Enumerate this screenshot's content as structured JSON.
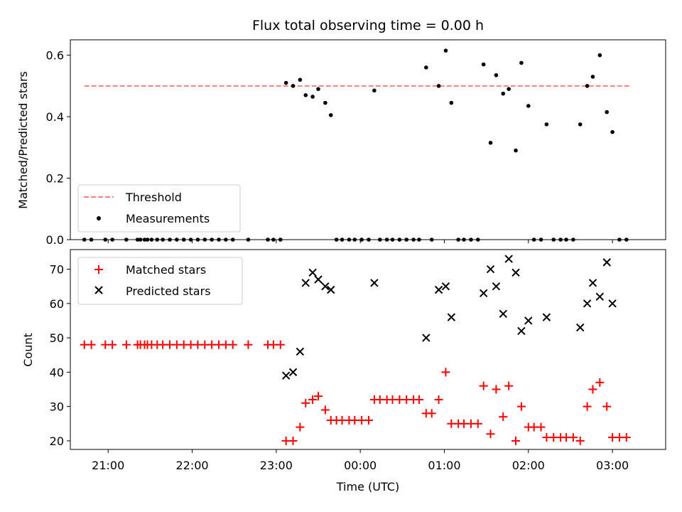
{
  "chart_data": [
    {
      "type": "scatter",
      "title": "Flux total observing time = 0.00 h",
      "xlabel": "",
      "ylabel": "Matched/Predicted stars",
      "xlim": [
        "20:33",
        "03:38"
      ],
      "ylim": [
        0,
        0.65
      ],
      "yticks": [
        0.0,
        0.2,
        0.4,
        0.6
      ],
      "ytick_labels": [
        "0.0",
        "0.2",
        "0.4",
        "0.6"
      ],
      "xticks": [
        "21:00",
        "22:00",
        "23:00",
        "00:00",
        "01:00",
        "02:00",
        "03:00"
      ],
      "grid": false,
      "legend_position": "lower-left",
      "threshold": {
        "name": "Threshold",
        "y": 0.5,
        "x_start": "20:43",
        "x_end": "03:12",
        "color": "#ff7f7f",
        "style": "dashed"
      },
      "series": [
        {
          "name": "Measurements",
          "marker": "dot",
          "color": "#000000",
          "points": [
            [
              "20:43",
              0
            ],
            [
              "20:48",
              0
            ],
            [
              "20:58",
              0
            ],
            [
              "21:03",
              0
            ],
            [
              "21:13",
              0
            ],
            [
              "21:21",
              0
            ],
            [
              "21:23",
              0
            ],
            [
              "21:26",
              0
            ],
            [
              "21:28",
              0
            ],
            [
              "21:31",
              0
            ],
            [
              "21:35",
              0
            ],
            [
              "21:39",
              0
            ],
            [
              "21:44",
              0
            ],
            [
              "21:49",
              0
            ],
            [
              "21:54",
              0
            ],
            [
              "21:59",
              0
            ],
            [
              "22:04",
              0
            ],
            [
              "22:09",
              0
            ],
            [
              "22:14",
              0
            ],
            [
              "22:19",
              0
            ],
            [
              "22:24",
              0
            ],
            [
              "22:29",
              0
            ],
            [
              "22:40",
              0
            ],
            [
              "22:54",
              0
            ],
            [
              "22:58",
              0
            ],
            [
              "23:03",
              0
            ],
            [
              "23:07",
              0.51
            ],
            [
              "23:12",
              0.5
            ],
            [
              "23:17",
              0.52
            ],
            [
              "23:21",
              0.47
            ],
            [
              "23:26",
              0.465
            ],
            [
              "23:30",
              0.49
            ],
            [
              "23:35",
              0.445
            ],
            [
              "23:39",
              0.405
            ],
            [
              "23:43",
              0
            ],
            [
              "23:47",
              0
            ],
            [
              "23:52",
              0
            ],
            [
              "23:56",
              0
            ],
            [
              "00:01",
              0
            ],
            [
              "00:06",
              0
            ],
            [
              "00:10",
              0.485
            ],
            [
              "00:14",
              0
            ],
            [
              "00:19",
              0
            ],
            [
              "00:23",
              0
            ],
            [
              "00:28",
              0
            ],
            [
              "00:33",
              0
            ],
            [
              "00:38",
              0
            ],
            [
              "00:42",
              0
            ],
            [
              "00:47",
              0.56
            ],
            [
              "00:51",
              0
            ],
            [
              "00:56",
              0.5
            ],
            [
              "01:01",
              0.615
            ],
            [
              "01:05",
              0.445
            ],
            [
              "01:10",
              0
            ],
            [
              "01:14",
              0
            ],
            [
              "01:19",
              0
            ],
            [
              "01:24",
              0
            ],
            [
              "01:28",
              0.57
            ],
            [
              "01:33",
              0.315
            ],
            [
              "01:37",
              0.535
            ],
            [
              "01:42",
              0.475
            ],
            [
              "01:46",
              0.49
            ],
            [
              "01:51",
              0.29
            ],
            [
              "01:55",
              0.575
            ],
            [
              "02:00",
              0.435
            ],
            [
              "02:04",
              0
            ],
            [
              "02:09",
              0
            ],
            [
              "02:13",
              0.375
            ],
            [
              "02:18",
              0
            ],
            [
              "02:23",
              0
            ],
            [
              "02:27",
              0
            ],
            [
              "02:32",
              0
            ],
            [
              "02:37",
              0.375
            ],
            [
              "02:42",
              0.5
            ],
            [
              "02:46",
              0.53
            ],
            [
              "02:51",
              0.6
            ],
            [
              "02:56",
              0.415
            ],
            [
              "03:00",
              0.35
            ],
            [
              "03:05",
              0
            ],
            [
              "03:10",
              0
            ]
          ]
        }
      ]
    },
    {
      "type": "scatter",
      "title": "",
      "xlabel": "Time (UTC)",
      "ylabel": "Count",
      "xlim": [
        "20:33",
        "03:38"
      ],
      "ylim": [
        17.5,
        75.7
      ],
      "yticks": [
        20,
        30,
        40,
        50,
        60,
        70
      ],
      "ytick_labels": [
        "20",
        "30",
        "40",
        "50",
        "60",
        "70"
      ],
      "xticks": [
        "21:00",
        "22:00",
        "23:00",
        "00:00",
        "01:00",
        "02:00",
        "03:00"
      ],
      "xtick_labels": [
        "21:00",
        "22:00",
        "23:00",
        "00:00",
        "01:00",
        "02:00",
        "03:00"
      ],
      "grid": false,
      "legend_position": "upper-left",
      "series": [
        {
          "name": "Matched stars",
          "marker": "plus",
          "color": "#ff0000",
          "points": [
            [
              "20:43",
              48
            ],
            [
              "20:48",
              48
            ],
            [
              "20:58",
              48
            ],
            [
              "21:03",
              48
            ],
            [
              "21:13",
              48
            ],
            [
              "21:21",
              48
            ],
            [
              "21:23",
              48
            ],
            [
              "21:26",
              48
            ],
            [
              "21:28",
              48
            ],
            [
              "21:31",
              48
            ],
            [
              "21:35",
              48
            ],
            [
              "21:39",
              48
            ],
            [
              "21:44",
              48
            ],
            [
              "21:49",
              48
            ],
            [
              "21:54",
              48
            ],
            [
              "21:59",
              48
            ],
            [
              "22:04",
              48
            ],
            [
              "22:09",
              48
            ],
            [
              "22:14",
              48
            ],
            [
              "22:19",
              48
            ],
            [
              "22:24",
              48
            ],
            [
              "22:29",
              48
            ],
            [
              "22:40",
              48
            ],
            [
              "22:54",
              48
            ],
            [
              "22:58",
              48
            ],
            [
              "23:03",
              48
            ],
            [
              "23:07",
              20
            ],
            [
              "23:12",
              20
            ],
            [
              "23:17",
              24
            ],
            [
              "23:21",
              31
            ],
            [
              "23:26",
              32
            ],
            [
              "23:30",
              33
            ],
            [
              "23:35",
              29
            ],
            [
              "23:39",
              26
            ],
            [
              "23:43",
              26
            ],
            [
              "23:47",
              26
            ],
            [
              "23:52",
              26
            ],
            [
              "23:56",
              26
            ],
            [
              "00:01",
              26
            ],
            [
              "00:06",
              26
            ],
            [
              "00:10",
              32
            ],
            [
              "00:14",
              32
            ],
            [
              "00:19",
              32
            ],
            [
              "00:23",
              32
            ],
            [
              "00:28",
              32
            ],
            [
              "00:33",
              32
            ],
            [
              "00:38",
              32
            ],
            [
              "00:42",
              32
            ],
            [
              "00:47",
              28
            ],
            [
              "00:51",
              28
            ],
            [
              "00:56",
              32
            ],
            [
              "01:01",
              40
            ],
            [
              "01:05",
              25
            ],
            [
              "01:10",
              25
            ],
            [
              "01:14",
              25
            ],
            [
              "01:19",
              25
            ],
            [
              "01:24",
              25
            ],
            [
              "01:28",
              36
            ],
            [
              "01:33",
              22
            ],
            [
              "01:37",
              35
            ],
            [
              "01:42",
              27
            ],
            [
              "01:46",
              36
            ],
            [
              "01:51",
              20
            ],
            [
              "01:55",
              30
            ],
            [
              "02:00",
              24
            ],
            [
              "02:04",
              24
            ],
            [
              "02:09",
              24
            ],
            [
              "02:13",
              21
            ],
            [
              "02:18",
              21
            ],
            [
              "02:23",
              21
            ],
            [
              "02:27",
              21
            ],
            [
              "02:32",
              21
            ],
            [
              "02:37",
              20
            ],
            [
              "02:42",
              30
            ],
            [
              "02:46",
              35
            ],
            [
              "02:51",
              37
            ],
            [
              "02:56",
              30
            ],
            [
              "03:00",
              21
            ],
            [
              "03:05",
              21
            ],
            [
              "03:10",
              21
            ]
          ]
        },
        {
          "name": "Predicted stars",
          "marker": "x",
          "color": "#000000",
          "points": [
            [
              "23:07",
              39
            ],
            [
              "23:12",
              40
            ],
            [
              "23:17",
              46
            ],
            [
              "23:21",
              66
            ],
            [
              "23:26",
              69
            ],
            [
              "23:30",
              67
            ],
            [
              "23:35",
              65
            ],
            [
              "23:39",
              64
            ],
            [
              "00:10",
              66
            ],
            [
              "00:47",
              50
            ],
            [
              "00:56",
              64
            ],
            [
              "01:01",
              65
            ],
            [
              "01:05",
              56
            ],
            [
              "01:28",
              63
            ],
            [
              "01:33",
              70
            ],
            [
              "01:37",
              65
            ],
            [
              "01:42",
              57
            ],
            [
              "01:46",
              73
            ],
            [
              "01:51",
              69
            ],
            [
              "01:55",
              52
            ],
            [
              "02:00",
              55
            ],
            [
              "02:13",
              56
            ],
            [
              "02:37",
              53
            ],
            [
              "02:42",
              60
            ],
            [
              "02:46",
              66
            ],
            [
              "02:51",
              62
            ],
            [
              "02:56",
              72
            ],
            [
              "03:00",
              60
            ]
          ]
        }
      ]
    }
  ]
}
